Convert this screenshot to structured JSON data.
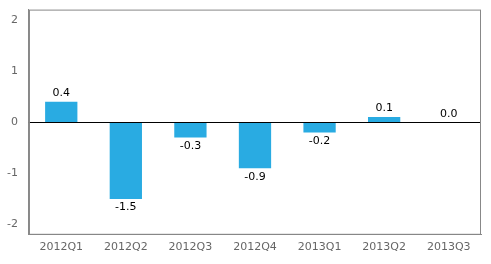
{
  "chart_data": {
    "type": "bar",
    "categories": [
      "2012Q1",
      "2012Q2",
      "2012Q3",
      "2012Q4",
      "2013Q1",
      "2013Q2",
      "2013Q3"
    ],
    "values": [
      0.4,
      -1.5,
      -0.3,
      -0.9,
      -0.2,
      0.1,
      0.0
    ],
    "value_labels": [
      "0.4",
      "-1.5",
      "-0.3",
      "-0.9",
      "-0.2",
      "0.1",
      "0.0"
    ],
    "color": "#29abe2",
    "ylim": [
      -2.2,
      2.2
    ],
    "yticks": [
      -2,
      -1,
      0,
      1,
      2
    ],
    "grid": false,
    "data_labels": true
  }
}
